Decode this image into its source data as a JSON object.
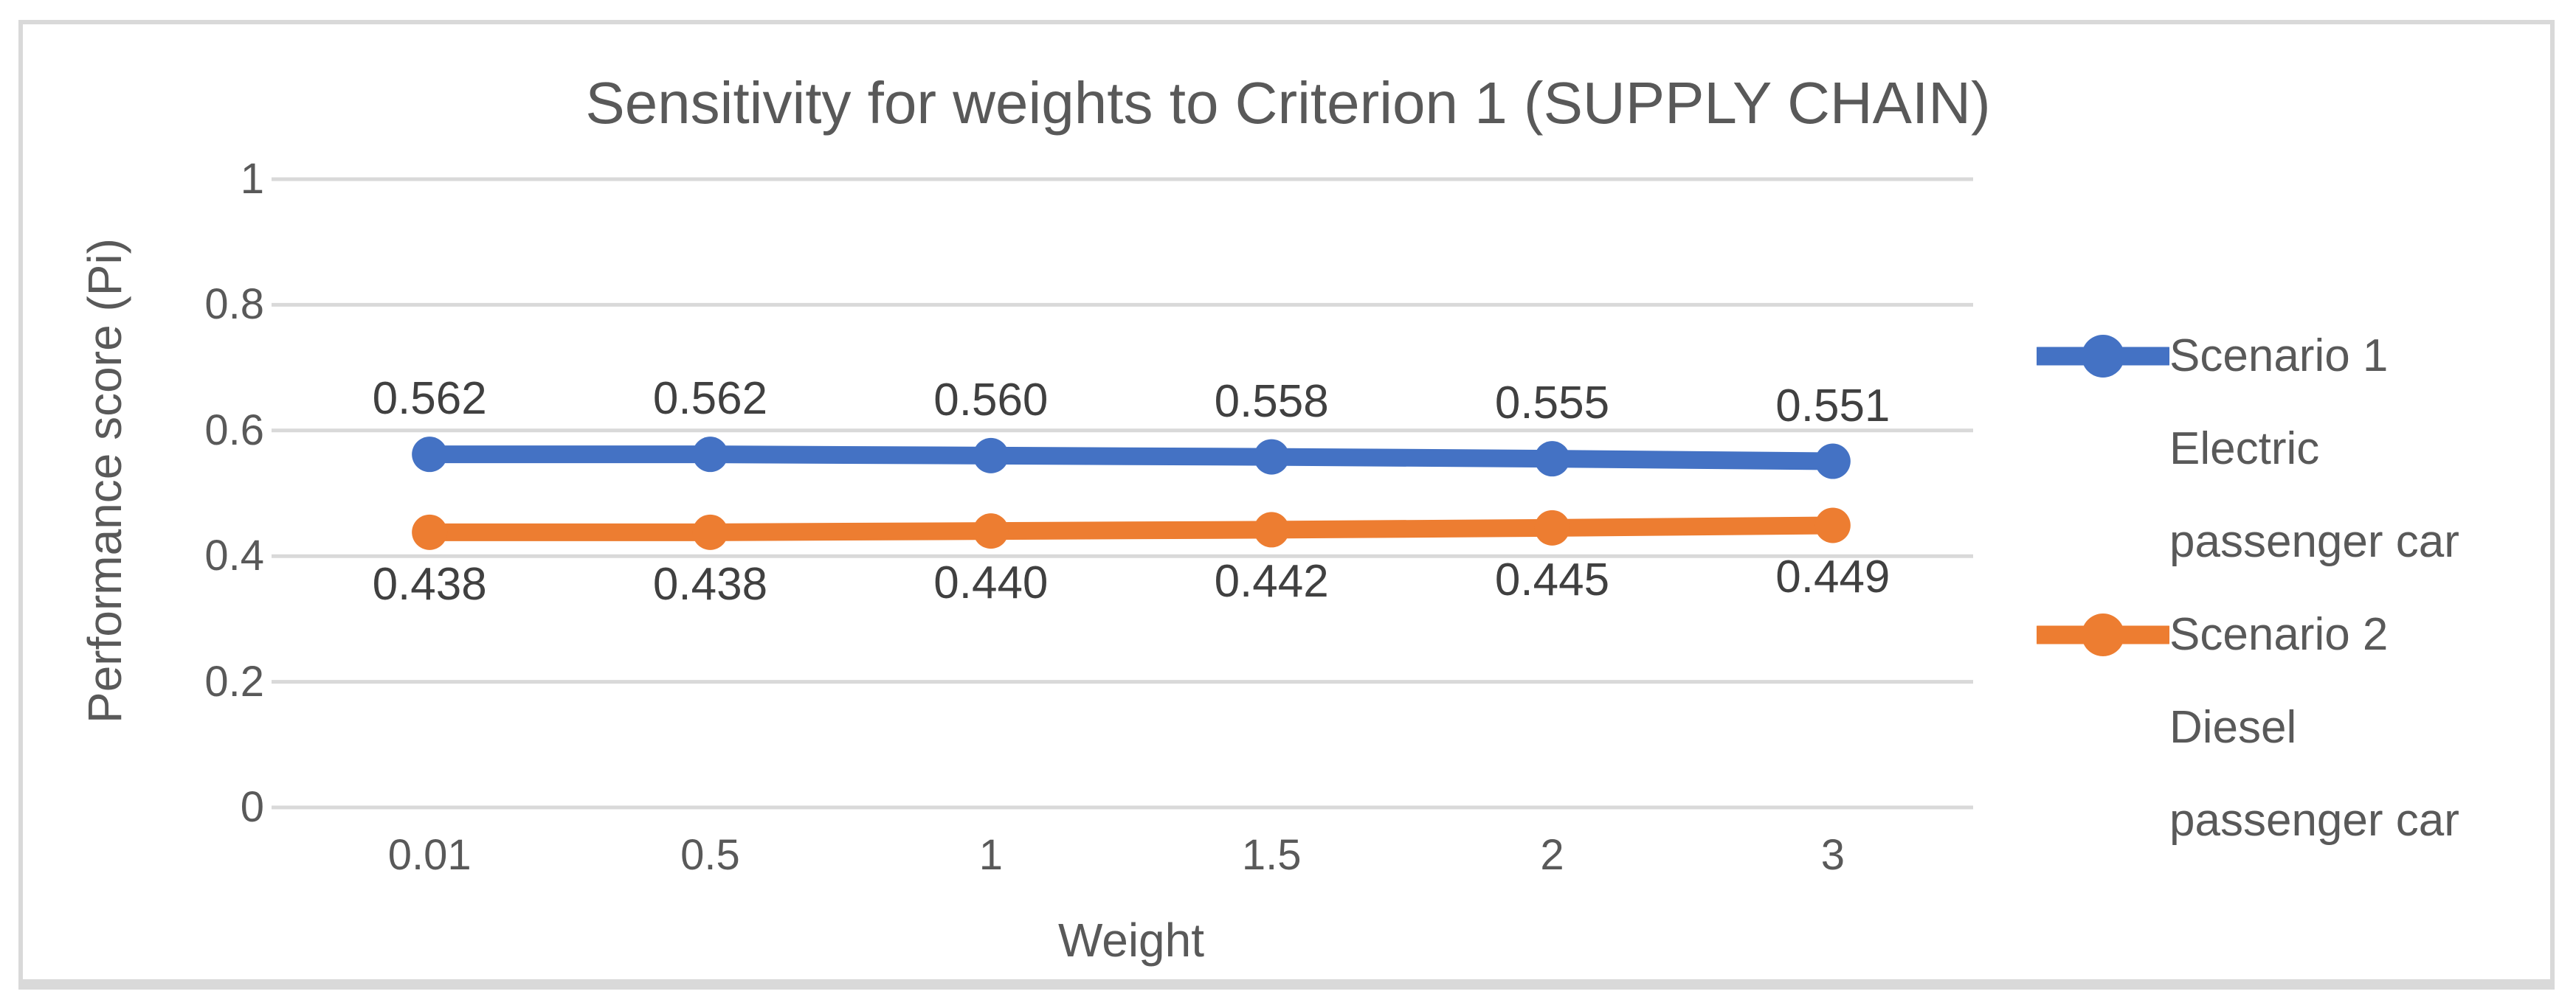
{
  "chart_data": {
    "type": "line",
    "title": "Sensitivity for weights to Criterion 1 (SUPPLY CHAIN)",
    "xlabel": "Weight",
    "ylabel": "Performance score (Pi)",
    "categories": [
      "0.01",
      "0.5",
      "1",
      "1.5",
      "2",
      "3"
    ],
    "series": [
      {
        "name": "Scenario 1 Electric passenger car",
        "color": "#4472C4",
        "values": [
          0.562,
          0.562,
          0.56,
          0.558,
          0.555,
          0.551
        ],
        "data_labels": [
          "0.562",
          "0.562",
          "0.560",
          "0.558",
          "0.555",
          "0.551"
        ],
        "label_position": "above",
        "marker": "circle"
      },
      {
        "name": "Scenario 2 Diesel passenger car",
        "color": "#ED7D31",
        "values": [
          0.438,
          0.438,
          0.44,
          0.442,
          0.445,
          0.449
        ],
        "data_labels": [
          "0.438",
          "0.438",
          "0.440",
          "0.442",
          "0.445",
          "0.449"
        ],
        "label_position": "below",
        "marker": "circle"
      }
    ],
    "yticks": [
      "1",
      "0.8",
      "0.6",
      "0.4",
      "0.2",
      "0"
    ],
    "ytick_values": [
      1,
      0.8,
      0.6,
      0.4,
      0.2,
      0
    ],
    "ylim": [
      0,
      1
    ],
    "grid": true,
    "legend_position": "right",
    "grid_color": "#D9D9D9",
    "frame_border_color": "#D9D9D9",
    "text_color": "#595959",
    "data_label_color": "#404040",
    "background_color": "#FFFFFF"
  }
}
